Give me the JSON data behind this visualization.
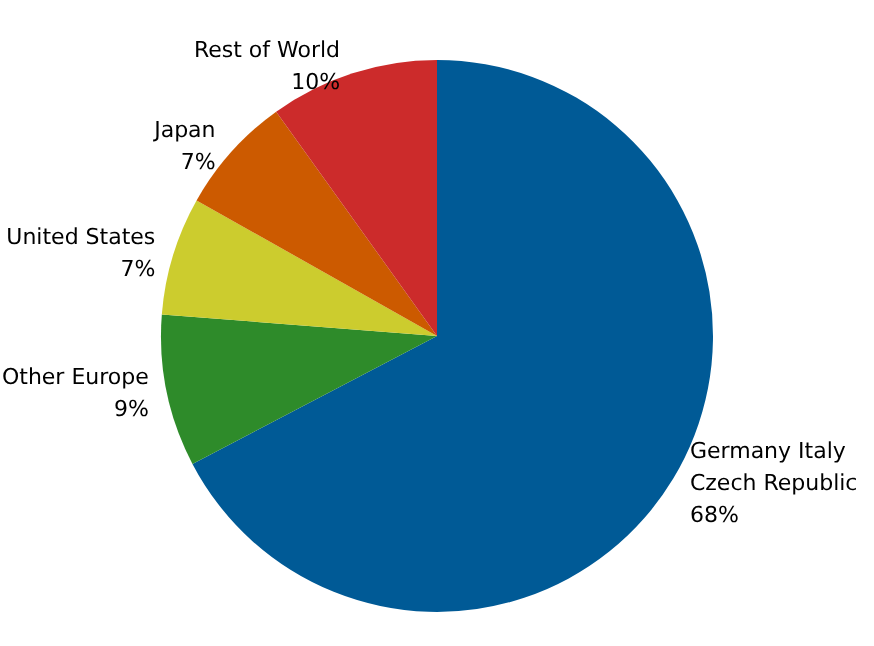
{
  "chart_data": {
    "type": "pie",
    "categories": [
      "Germany Italy Czech Republic",
      "Other Europe",
      "United States",
      "Japan",
      "Rest of World"
    ],
    "values": [
      68,
      9,
      7,
      7,
      10
    ],
    "colors": [
      "#005a96",
      "#2e8b2a",
      "#cccc2e",
      "#cc5a00",
      "#cc2b2b"
    ],
    "value_labels": [
      "68%",
      "9%",
      "7%",
      "7%",
      "10%"
    ],
    "legend": false
  }
}
